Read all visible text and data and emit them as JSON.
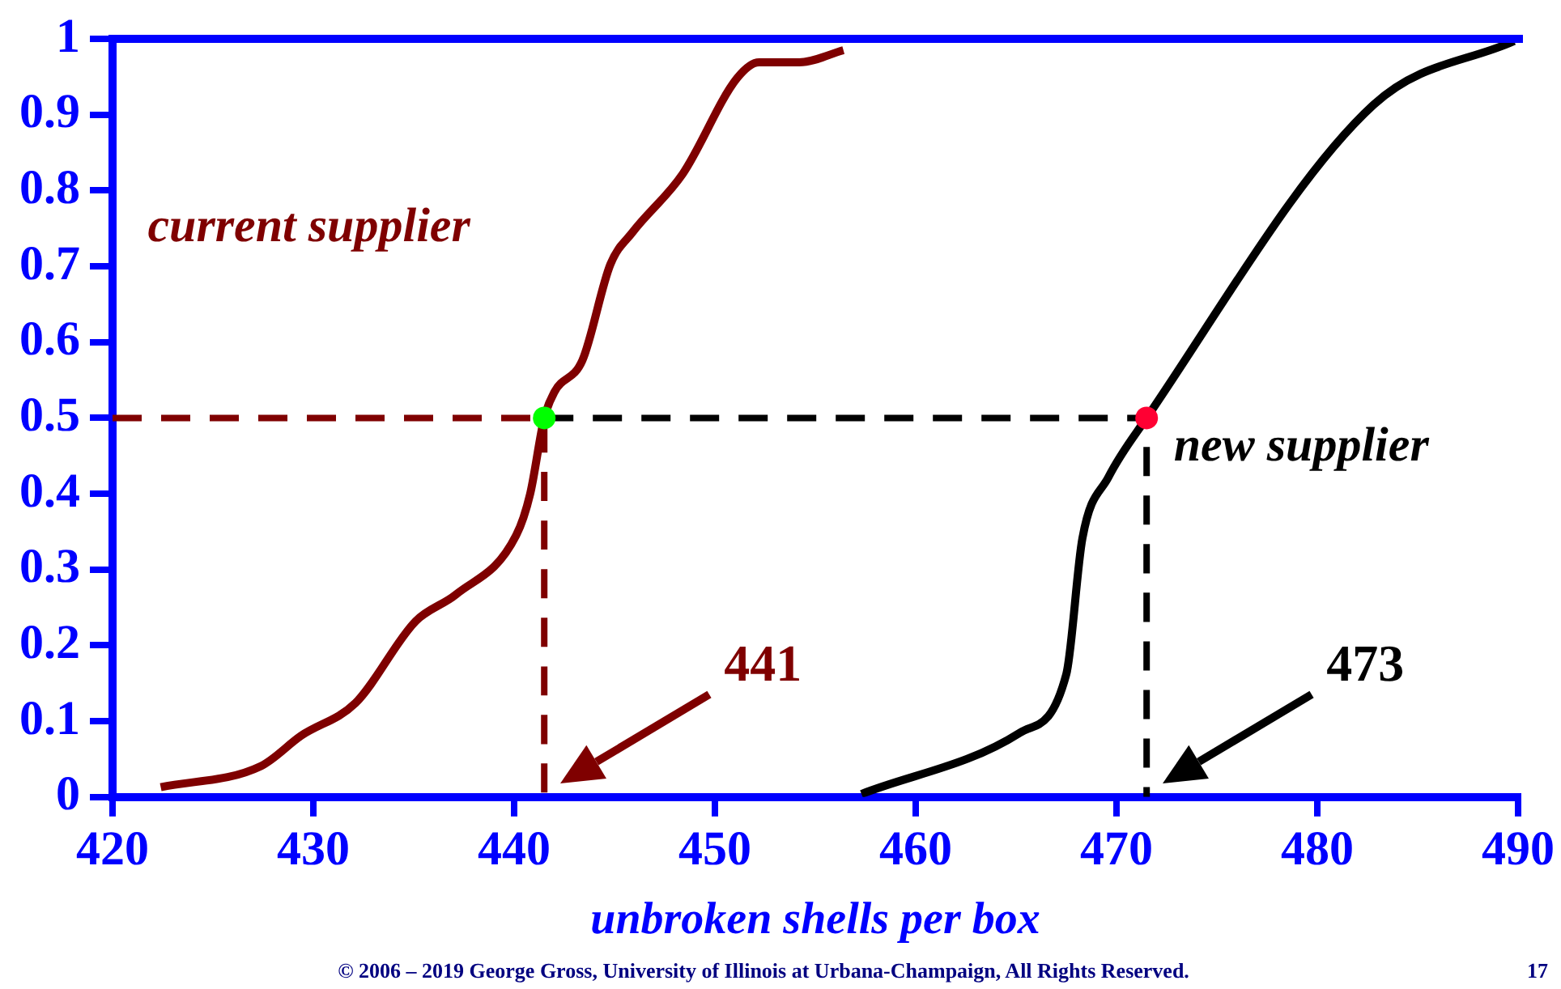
{
  "chart_data": {
    "type": "line",
    "xlabel": "unbroken shells per box",
    "xlim": [
      420,
      490
    ],
    "xticks": [
      420,
      430,
      440,
      450,
      460,
      470,
      480,
      490
    ],
    "ylim": [
      0,
      1
    ],
    "yticks": [
      0,
      0.1,
      0.2,
      0.3,
      0.4,
      0.5,
      0.6,
      0.7,
      0.8,
      0.9,
      1
    ],
    "legend": false,
    "series": [
      {
        "type": "line",
        "color": "#7f0000",
        "x": [
          420,
          441.5,
          441.5
        ],
        "values": [
          0.5,
          0.5,
          0
        ],
        "line_style": "dashed",
        "marker": "none"
      },
      {
        "type": "line",
        "color": "#000000",
        "x": [
          441.5,
          471.5,
          471.5
        ],
        "values": [
          0.5,
          0.5,
          0
        ],
        "line_style": "dashed",
        "marker": "none"
      },
      {
        "name": "current supplier",
        "type": "line",
        "color": "#7f0000",
        "x": [
          422.4,
          427.4,
          429.4,
          432.1,
          435.1,
          437.1,
          440.1,
          440.8,
          441.5,
          442.0,
          443.4,
          444.8,
          445.9,
          448.4,
          451.1,
          452.2,
          454.2,
          456.4
        ],
        "values": [
          0.013,
          0.041,
          0.081,
          0.124,
          0.232,
          0.267,
          0.345,
          0.4,
          0.5,
          0.534,
          0.576,
          0.703,
          0.745,
          0.822,
          0.948,
          0.969,
          0.969,
          0.985
        ],
        "marker": "none"
      },
      {
        "name": "new supplier",
        "type": "line",
        "color": "#000000",
        "x": [
          457.3,
          465.2,
          467.5,
          468.3,
          469.6,
          471.5,
          482.8,
          489.8
        ],
        "values": [
          0.004,
          0.085,
          0.162,
          0.341,
          0.422,
          0.5,
          0.913,
          0.997
        ],
        "marker": "none"
      },
      {
        "type": "scatter",
        "color": "#00ff00",
        "x": [
          441.5
        ],
        "values": [
          0.5
        ],
        "marker": "circle"
      },
      {
        "type": "scatter",
        "color": "#ff0033",
        "x": [
          471.5
        ],
        "values": [
          0.5
        ],
        "marker": "circle"
      }
    ],
    "annotations": [
      "441",
      "473",
      "© 2006 – 2019 George Gross, University of Illinois at Urbana-Champaign, All Rights Reserved.",
      "17"
    ]
  }
}
